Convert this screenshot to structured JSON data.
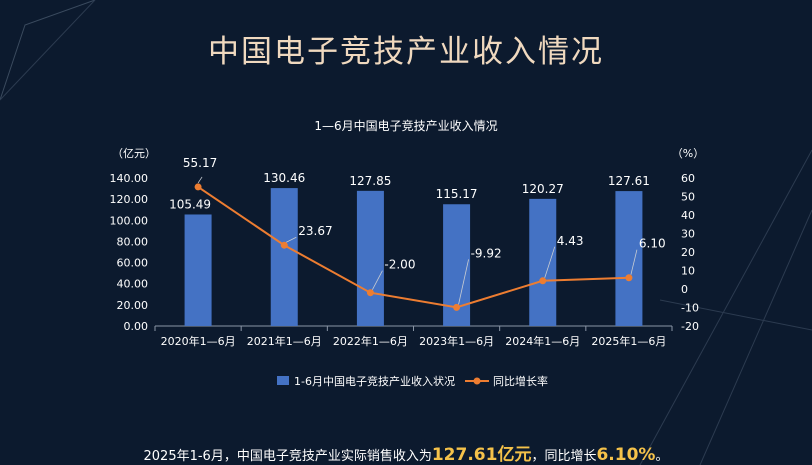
{
  "page": {
    "title": "中国电子竞技产业收入情况",
    "caption": {
      "pre": "2025年1-6月，中国电子竞技产业实际销售收入为",
      "revenue": "127.61亿元",
      "mid": "，同比增长",
      "growth": "6.10%",
      "post": "。"
    }
  },
  "colors": {
    "background": "#0c1a2e",
    "bar": "#4472c4",
    "line": "#ed7d31",
    "title": "#f0d9bf",
    "highlight": "#f5c24a"
  },
  "chart_data": {
    "type": "bar",
    "title": "1—6月中国电子竞技产业收入情况",
    "categories": [
      "2020年1—6月",
      "2021年1—6月",
      "2022年1—6月",
      "2023年1—6月",
      "2024年1—6月",
      "2025年1—6月"
    ],
    "y_unit": "（亿元）",
    "y2_unit": "（%）",
    "ylim": [
      0,
      140
    ],
    "y_ticks": [
      "0.00",
      "20.00",
      "40.00",
      "60.00",
      "80.00",
      "100.00",
      "120.00",
      "140.00"
    ],
    "y2lim": [
      -20,
      60
    ],
    "y2_ticks": [
      "-20",
      "-10",
      "0",
      "10",
      "20",
      "30",
      "40",
      "50",
      "60"
    ],
    "grid": false,
    "legend_position": "bottom",
    "series": [
      {
        "name": "1-6月中国电子竞技产业收入状况",
        "type": "bar",
        "axis": "left",
        "values": [
          105.49,
          130.46,
          127.85,
          115.17,
          120.27,
          127.61
        ],
        "labels": [
          "105.49",
          "130.46",
          "127.85",
          "115.17",
          "120.27",
          "127.61"
        ]
      },
      {
        "name": "同比增长率",
        "type": "line",
        "axis": "right",
        "values": [
          55.17,
          23.67,
          -2.0,
          -9.92,
          4.43,
          6.1
        ],
        "labels": [
          "55.17",
          "23.67",
          "-2.00",
          "-9.92",
          "4.43",
          "6.10"
        ]
      }
    ]
  }
}
